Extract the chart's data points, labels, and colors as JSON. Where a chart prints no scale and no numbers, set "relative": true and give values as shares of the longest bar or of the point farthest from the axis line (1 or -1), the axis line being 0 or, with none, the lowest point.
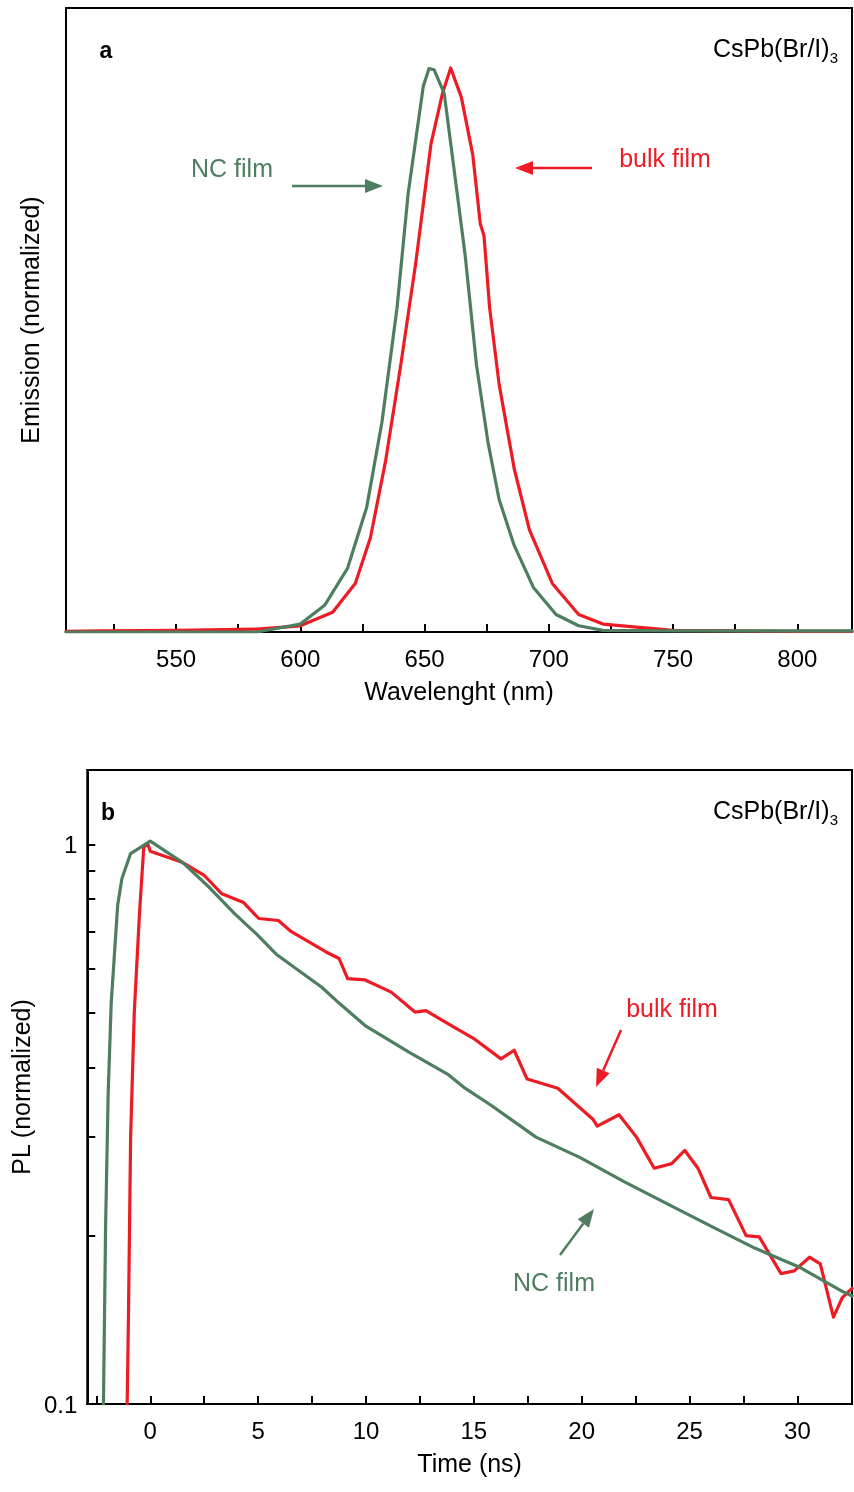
{
  "chart_data": [
    {
      "type": "line",
      "xlabel": "Wavelenght (nm)",
      "ylabel": "Emission (normalized)",
      "relative": true,
      "xlim": [
        505.7,
        822
      ],
      "xticks": [
        {
          "value": 525,
          "label": null
        },
        550,
        {
          "value": 575,
          "label": null
        },
        600,
        {
          "value": 625,
          "label": null
        },
        650,
        {
          "value": 675,
          "label": null
        },
        700,
        {
          "value": 725,
          "label": null
        },
        750,
        {
          "value": 775,
          "label": null
        },
        800
      ],
      "grid": false,
      "marker": "none",
      "line_style": "solid",
      "series": [
        {
          "name": "bulk film",
          "color": "#ed1c24",
          "x": [
            505.7,
            520,
            550,
            582.5,
            600,
            613,
            622.1,
            628.2,
            634.3,
            640.4,
            646.5,
            652.6,
            657.2,
            660.5,
            664.8,
            669.4,
            672.4,
            673.9,
            676.2,
            680,
            686.1,
            692.2,
            701.4,
            712,
            721.8,
            750,
            800,
            822
          ],
          "values": [
            0.001,
            0.002,
            0.003,
            0.005,
            0.011,
            0.035,
            0.086,
            0.167,
            0.303,
            0.473,
            0.656,
            0.866,
            0.955,
            1.0,
            0.948,
            0.846,
            0.724,
            0.703,
            0.574,
            0.439,
            0.289,
            0.181,
            0.086,
            0.031,
            0.014,
            0.003,
            0.001,
            0.001
          ]
        },
        {
          "name": "NC film",
          "color": "#4e7d60",
          "x": [
            505.7,
            550,
            582.5,
            600,
            609.9,
            619,
            626.7,
            632.8,
            638.9,
            643.4,
            649.5,
            651.8,
            653.8,
            657.9,
            661.7,
            666.3,
            670.9,
            675.5,
            680,
            686.1,
            693.8,
            702.9,
            712,
            721.8,
            750,
            800,
            822
          ],
          "values": [
            0,
            0,
            0,
            0.014,
            0.048,
            0.113,
            0.221,
            0.371,
            0.574,
            0.778,
            0.968,
            0.999,
            0.997,
            0.955,
            0.826,
            0.669,
            0.473,
            0.337,
            0.235,
            0.153,
            0.079,
            0.031,
            0.011,
            0.003,
            0.002,
            0.002,
            0.002
          ]
        }
      ],
      "annotations": [
        "a",
        "CsPb(Br/I)$_{3}$"
      ]
    },
    {
      "type": "line",
      "xlabel": "Time (ns)",
      "ylabel": "PL (normalized)",
      "log": "y",
      "xlim": [
        -2.92,
        32.53
      ],
      "xticks": [
        {
          "value": -2.5,
          "label": null
        },
        0,
        {
          "value": 2.5,
          "label": null
        },
        5,
        {
          "value": 7.5,
          "label": null
        },
        10,
        {
          "value": 12.5,
          "label": null
        },
        15,
        {
          "value": 17.5,
          "label": null
        },
        20,
        {
          "value": 22.5,
          "label": null
        },
        25,
        {
          "value": 27.5,
          "label": null
        },
        30
      ],
      "ylim": [
        0.1,
        1.36
      ],
      "yticks": [
        0.1,
        {
          "value": 0.2,
          "label": null
        },
        {
          "value": 0.3,
          "label": null
        },
        {
          "value": 0.4,
          "label": null
        },
        {
          "value": 0.5,
          "label": null
        },
        {
          "value": 0.6,
          "label": null
        },
        {
          "value": 0.7,
          "label": null
        },
        {
          "value": 0.8,
          "label": null
        },
        {
          "value": 0.9,
          "label": null
        },
        1
      ],
      "grid": false,
      "marker": "none",
      "line_style": "solid",
      "series": [
        {
          "name": "bulk film",
          "color": "#ed1c24",
          "x": [
            -1.07,
            -1.01,
            -0.91,
            -0.74,
            -0.5,
            -0.3,
            -0.1,
            0,
            1.51,
            2.52,
            3.32,
            4.33,
            5.03,
            5.94,
            6.54,
            8.15,
            8.75,
            9.15,
            9.96,
            11.17,
            12.27,
            12.78,
            13.78,
            15.04,
            16.26,
            16.87,
            17.47,
            18.89,
            20.52,
            20.72,
            21.73,
            22.54,
            23.36,
            24.17,
            24.78,
            25.39,
            25.99,
            26.81,
            27.62,
            28.23,
            29.24,
            29.85,
            30.56,
            31.06,
            31.67,
            32.08,
            32.53
          ],
          "values": [
            0.1,
            0.144,
            0.3,
            0.502,
            0.752,
            0.991,
            1.0,
            0.973,
            0.929,
            0.88,
            0.817,
            0.788,
            0.738,
            0.732,
            0.699,
            0.643,
            0.626,
            0.576,
            0.573,
            0.545,
            0.502,
            0.505,
            0.479,
            0.449,
            0.414,
            0.429,
            0.381,
            0.367,
            0.323,
            0.314,
            0.329,
            0.3,
            0.264,
            0.269,
            0.284,
            0.264,
            0.234,
            0.232,
            0.2,
            0.199,
            0.171,
            0.173,
            0.183,
            0.178,
            0.143,
            0.155,
            0.161
          ]
        },
        {
          "name": "NC film",
          "color": "#4e7d60",
          "x": [
            -2.17,
            -2.07,
            -1.95,
            -1.81,
            -1.51,
            -1.31,
            -0.91,
            0,
            1.51,
            2.72,
            3.92,
            4.93,
            5.84,
            7.95,
            8.75,
            9.96,
            11.97,
            13.82,
            14.59,
            15.85,
            17.88,
            19.91,
            21.94,
            23.97,
            25.99,
            28.02,
            30.05,
            32.08,
            32.53
          ],
          "values": [
            0.1,
            0.208,
            0.36,
            0.521,
            0.78,
            0.871,
            0.964,
            1.015,
            0.929,
            0.84,
            0.752,
            0.692,
            0.637,
            0.556,
            0.521,
            0.475,
            0.426,
            0.388,
            0.367,
            0.341,
            0.3,
            0.276,
            0.25,
            0.228,
            0.208,
            0.19,
            0.176,
            0.159,
            0.156
          ]
        }
      ],
      "annotations": [
        "b",
        "CsPb(Br/I)$_{3}$"
      ]
    }
  ]
}
